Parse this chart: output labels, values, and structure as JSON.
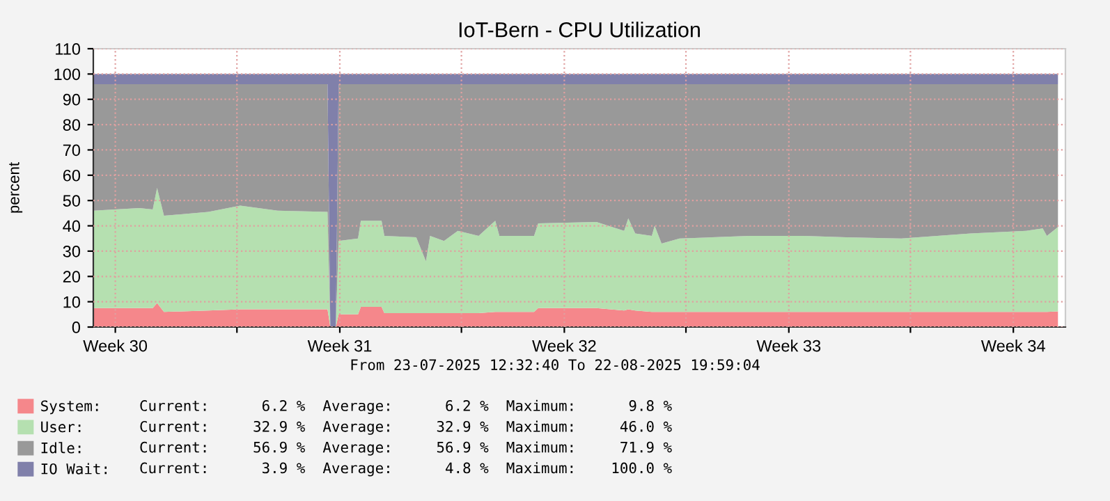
{
  "chart_data": {
    "type": "area",
    "stacked": true,
    "title": "IoT-Bern - CPU Utilization",
    "ylabel": "percent",
    "x": [
      "2025-07-23T12:32",
      "2025-07-24T23:00",
      "2025-07-25T09:00",
      "2025-07-25T12:15",
      "2025-07-25T17:25",
      "2025-07-27T02:40",
      "2025-07-28T02:30",
      "2025-07-29T06:30",
      "2025-07-30T19:48",
      "2025-07-30T21:53",
      "2025-07-31T02:00",
      "2025-07-31T04:06",
      "2025-07-31T18:37",
      "2025-07-31T20:43",
      "2025-08-01T12:14",
      "2025-08-01T14:20",
      "2025-08-02T14:10",
      "2025-08-02T21:27",
      "2025-08-03T00:33",
      "2025-08-03T10:57",
      "2025-08-03T21:19",
      "2025-08-04T12:52",
      "2025-08-05T01:19",
      "2025-08-05T04:25",
      "2025-08-06T06:22",
      "2025-08-06T09:27",
      "2025-08-08T05:01",
      "2025-08-09T01:45",
      "2025-08-09T04:52",
      "2025-08-09T10:03",
      "2025-08-09T22:29",
      "2025-08-10T00:35",
      "2025-08-10T05:46",
      "2025-08-10T19:12",
      "2025-08-12T23:07",
      "2025-08-14T16:35",
      "2025-08-15T23:43",
      "2025-08-17T17:12",
      "2025-08-19T21:04",
      "2025-08-21T14:33",
      "2025-08-22T03:00",
      "2025-08-22T06:06",
      "2025-08-22T14:24"
    ],
    "series": [
      {
        "name": "System:",
        "color": "#f5878b",
        "values": [
          7.5,
          7.5,
          7.5,
          9.5,
          6,
          6.5,
          7,
          7,
          7,
          0,
          0,
          5,
          5,
          8,
          8,
          5.5,
          5.5,
          5.5,
          5.5,
          5.5,
          5.5,
          5.5,
          6,
          6,
          6,
          7.5,
          7.5,
          6.5,
          7,
          6.5,
          6,
          6,
          6,
          6,
          6,
          6,
          6,
          6,
          6,
          6,
          6,
          6,
          6.2
        ]
      },
      {
        "name": "User:",
        "color": "#b5e0b0",
        "values": [
          38.5,
          39.5,
          39,
          45.5,
          38,
          39,
          41,
          39,
          38.5,
          0,
          0,
          29,
          30,
          34,
          34,
          30.5,
          30,
          20.5,
          30.5,
          28.5,
          32.5,
          30.5,
          36,
          30,
          30,
          33.5,
          34,
          31.5,
          36,
          30.5,
          30,
          34,
          27,
          29,
          30,
          30,
          29.5,
          29,
          31,
          32,
          33,
          30,
          33.3
        ]
      },
      {
        "name": "Idle:",
        "color": "#999999",
        "values": [
          50,
          49,
          49.5,
          41,
          52,
          50.5,
          48,
          50,
          50.5,
          0,
          0,
          62,
          61,
          54,
          54,
          60,
          60.5,
          70,
          60,
          62,
          58,
          60,
          54,
          60,
          60,
          55,
          54.5,
          58,
          53,
          59,
          60,
          56,
          63,
          61,
          60,
          60,
          60.5,
          61,
          59,
          58,
          57,
          60,
          56.5
        ]
      },
      {
        "name": "IO Wait:",
        "color": "#8080aa",
        "values": [
          4,
          4,
          4,
          4,
          4,
          4,
          4,
          4,
          4,
          100,
          100,
          4,
          4,
          4,
          4,
          4,
          4,
          4,
          4,
          4,
          4,
          4,
          4,
          4,
          4,
          4,
          4,
          4,
          4,
          4,
          4,
          4,
          4,
          4,
          4,
          4,
          4,
          4,
          4,
          4,
          4,
          4,
          4
        ]
      }
    ],
    "xlim": [
      "2025-07-23T12:32",
      "2025-08-22T19:59"
    ],
    "xticks": [
      {
        "value": "2025-07-24T05:00",
        "label": "Week 30"
      },
      {
        "value": "2025-07-28T00:00",
        "label": null
      },
      {
        "value": "2025-07-31T05:00",
        "label": "Week 31"
      },
      {
        "value": "2025-08-04T00:00",
        "label": null
      },
      {
        "value": "2025-08-07T05:00",
        "label": "Week 32"
      },
      {
        "value": "2025-08-11T00:00",
        "label": null
      },
      {
        "value": "2025-08-14T05:00",
        "label": "Week 33"
      },
      {
        "value": "2025-08-18T00:00",
        "label": null
      },
      {
        "value": "2025-08-21T05:00",
        "label": "Week 34"
      }
    ],
    "ylim": [
      0,
      110
    ],
    "yticks": [
      0,
      10,
      20,
      30,
      40,
      50,
      60,
      70,
      80,
      90,
      100,
      110
    ],
    "grid": true,
    "legend": "bottom",
    "annotations": [
      "From 23-07-2025 12:32:40 To 22-08-2025 19:59:04",
      "Current:      6.2 %  Average:      6.2 %  Maximum:      9.8 %",
      "Current:     32.9 %  Average:     32.9 %  Maximum:     46.0 %",
      "Current:     56.9 %  Average:     56.9 %  Maximum:     71.9 %",
      "Current:      3.9 %  Average:      4.8 %  Maximum:    100.0 %"
    ]
  }
}
